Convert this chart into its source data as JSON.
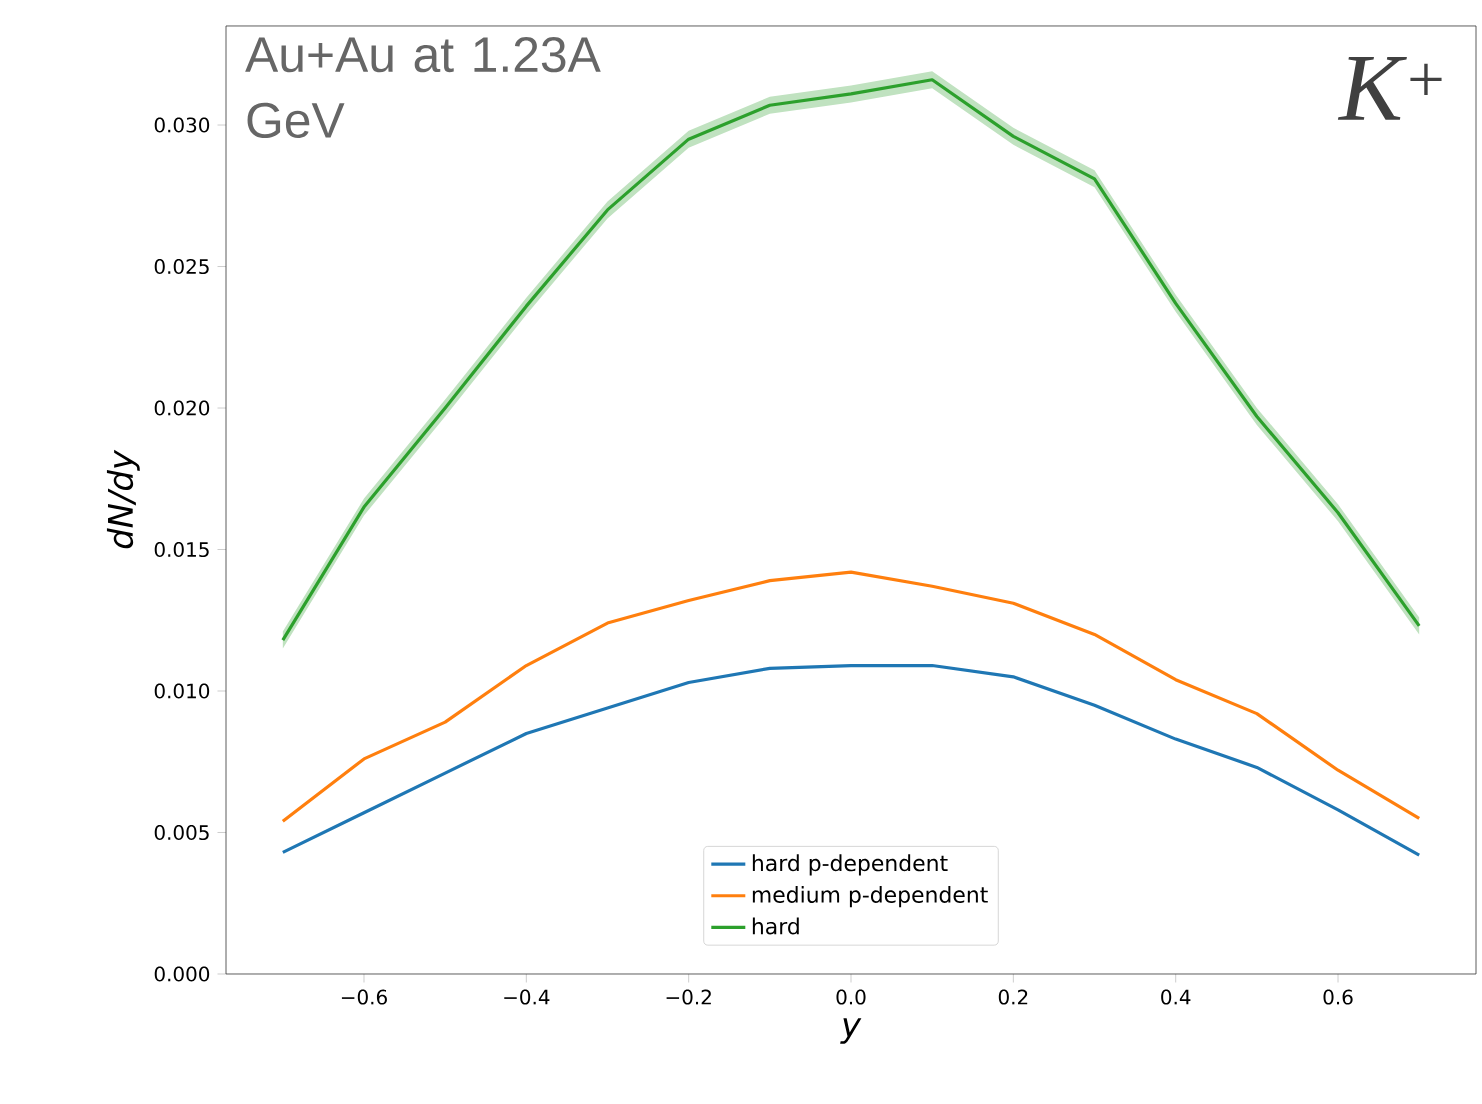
{
  "chart_data": {
    "type": "line",
    "xlabel": "y",
    "ylabel": "dN/dy",
    "annotations": [
      "Au+Au at 1.23A GeV",
      "K$^{+}$"
    ],
    "x": [
      -0.7,
      -0.6,
      -0.5,
      -0.4,
      -0.3,
      -0.2,
      -0.1,
      0.0,
      0.1,
      0.2,
      0.3,
      0.4,
      0.5,
      0.6,
      0.7
    ],
    "series": [
      {
        "name": "hard p-dependent",
        "color": "#1f77b4",
        "values": [
          0.0043,
          0.0057,
          0.0071,
          0.0085,
          0.0094,
          0.0103,
          0.0108,
          0.0109,
          0.0109,
          0.0105,
          0.0095,
          0.0083,
          0.0073,
          0.0058,
          0.0042
        ]
      },
      {
        "name": "medium p-dependent",
        "color": "#ff7f0e",
        "values": [
          0.0054,
          0.0076,
          0.0089,
          0.0109,
          0.0124,
          0.0132,
          0.0139,
          0.0142,
          0.0137,
          0.0131,
          0.012,
          0.0104,
          0.0092,
          0.0072,
          0.0055
        ]
      },
      {
        "name": "hard",
        "color": "#2ca02c",
        "values": [
          0.0118,
          0.0165,
          0.02,
          0.0236,
          0.027,
          0.0295,
          0.0307,
          0.0311,
          0.0316,
          0.0296,
          0.0281,
          0.0237,
          0.0197,
          0.0163,
          0.0123
        ],
        "lower": [
          0.0115,
          0.0162,
          0.0197,
          0.0233,
          0.0267,
          0.0292,
          0.0304,
          0.0308,
          0.0313,
          0.0293,
          0.0278,
          0.0234,
          0.0194,
          0.016,
          0.012
        ],
        "upper": [
          0.0121,
          0.0168,
          0.0203,
          0.0239,
          0.0273,
          0.0298,
          0.031,
          0.0314,
          0.0319,
          0.0299,
          0.0284,
          0.024,
          0.02,
          0.0166,
          0.0126
        ]
      }
    ],
    "xlim": [
      -0.77,
      0.77
    ],
    "ylim": [
      0,
      0.0335
    ],
    "xticks": [
      {
        "value": -0.6,
        "label": "−0.6"
      },
      {
        "value": -0.4,
        "label": "−0.4"
      },
      {
        "value": -0.2,
        "label": "−0.2"
      },
      {
        "value": 0,
        "label": "0.0"
      },
      {
        "value": 0.2,
        "label": "0.2"
      },
      {
        "value": 0.4,
        "label": "0.4"
      },
      {
        "value": 0.6,
        "label": "0.6"
      }
    ],
    "yticks": [
      {
        "value": 0,
        "label": "0.000"
      },
      {
        "value": 0.005,
        "label": "0.005"
      },
      {
        "value": 0.01,
        "label": "0.010"
      },
      {
        "value": 0.015,
        "label": "0.015"
      },
      {
        "value": 0.02,
        "label": "0.020"
      },
      {
        "value": 0.025,
        "label": "0.025"
      },
      {
        "value": 0.03,
        "label": "0.030"
      }
    ],
    "grid": false,
    "legend": "bottom"
  }
}
